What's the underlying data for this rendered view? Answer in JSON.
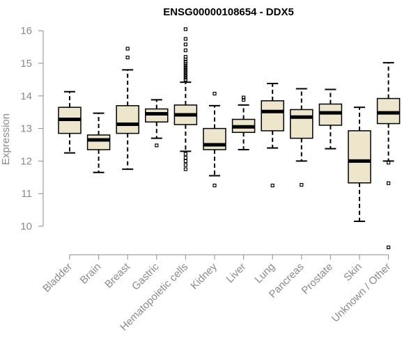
{
  "chart_data": {
    "type": "boxplot",
    "title": "ENSG00000108654 - DDX5",
    "xlabel": "",
    "ylabel": "Expression",
    "ylim": [
      9.3,
      16.1
    ],
    "yticks": [
      10,
      11,
      12,
      13,
      14,
      15,
      16
    ],
    "grid": false,
    "legend": "none",
    "colors": {
      "box_fill": "#ede6cc",
      "box_stroke": "#000000",
      "axis": "#8a8a8a",
      "median": "#000000"
    },
    "categories": [
      "Bladder",
      "Brain",
      "Breast",
      "Gastric",
      "Hematopoietic cells",
      "Kidney",
      "Liver",
      "Lung",
      "Pancreas",
      "Prostate",
      "Skin",
      "Unknown / Other"
    ],
    "boxes": [
      {
        "category": "Bladder",
        "whisker_low": 12.25,
        "q1": 12.85,
        "median": 13.28,
        "q3": 13.65,
        "whisker_high": 14.13,
        "outliers": []
      },
      {
        "category": "Brain",
        "whisker_low": 11.65,
        "q1": 12.35,
        "median": 12.65,
        "q3": 12.8,
        "whisker_high": 13.47,
        "outliers": []
      },
      {
        "category": "Breast",
        "whisker_low": 11.75,
        "q1": 12.85,
        "median": 13.13,
        "q3": 13.7,
        "whisker_high": 14.8,
        "outliers": [
          15.45,
          15.18
        ]
      },
      {
        "category": "Gastric",
        "whisker_low": 12.7,
        "q1": 13.2,
        "median": 13.45,
        "q3": 13.6,
        "whisker_high": 13.88,
        "outliers": [
          12.48
        ]
      },
      {
        "category": "Hematopoietic cells",
        "whisker_low": 12.3,
        "q1": 13.12,
        "median": 13.42,
        "q3": 13.72,
        "whisker_high": 14.42,
        "outliers": [
          16.05,
          15.75,
          15.58,
          15.4,
          15.2,
          15.12,
          15.05,
          14.98,
          14.92,
          14.86,
          14.8,
          14.74,
          14.68,
          14.62,
          14.56,
          14.5,
          12.22,
          12.1,
          12.0,
          11.88,
          11.75
        ]
      },
      {
        "category": "Kidney",
        "whisker_low": 11.55,
        "q1": 12.35,
        "median": 12.5,
        "q3": 13.0,
        "whisker_high": 13.7,
        "outliers": [
          14.07,
          11.25
        ]
      },
      {
        "category": "Liver",
        "whisker_low": 12.35,
        "q1": 12.88,
        "median": 13.05,
        "q3": 13.28,
        "whisker_high": 13.72,
        "outliers": [
          13.95,
          13.88
        ]
      },
      {
        "category": "Lung",
        "whisker_low": 12.4,
        "q1": 12.93,
        "median": 13.52,
        "q3": 13.85,
        "whisker_high": 14.38,
        "outliers": [
          11.25
        ]
      },
      {
        "category": "Pancreas",
        "whisker_low": 12.0,
        "q1": 12.7,
        "median": 13.35,
        "q3": 13.58,
        "whisker_high": 14.22,
        "outliers": [
          11.27
        ]
      },
      {
        "category": "Prostate",
        "whisker_low": 12.38,
        "q1": 13.1,
        "median": 13.48,
        "q3": 13.75,
        "whisker_high": 14.2,
        "outliers": []
      },
      {
        "category": "Skin",
        "whisker_low": 10.15,
        "q1": 11.33,
        "median": 12.0,
        "q3": 12.93,
        "whisker_high": 13.65,
        "outliers": []
      },
      {
        "category": "Unknown / Other",
        "whisker_low": 12.0,
        "q1": 13.15,
        "median": 13.48,
        "q3": 13.92,
        "whisker_high": 15.02,
        "outliers": [
          11.95,
          11.32,
          9.35
        ]
      }
    ]
  }
}
